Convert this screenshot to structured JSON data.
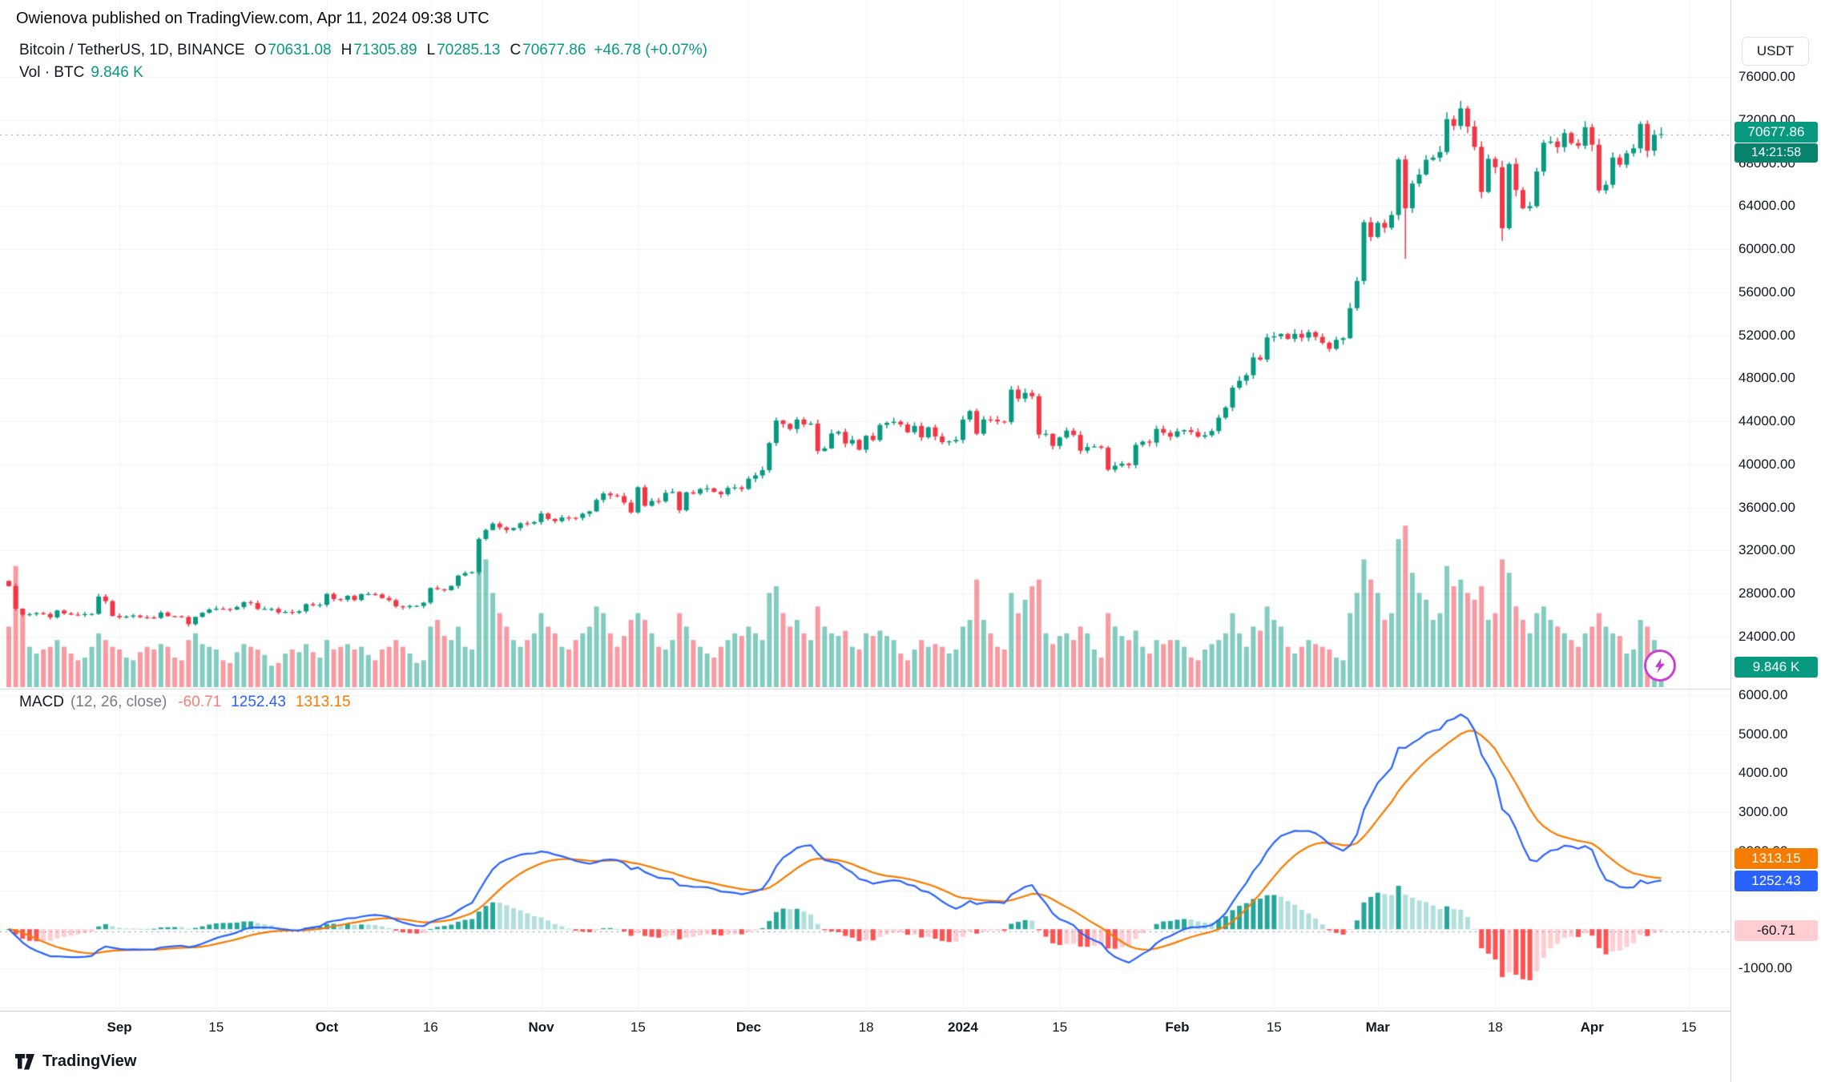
{
  "header": {
    "published": "Owienova published on TradingView.com, Apr 11, 2024 09:38 UTC"
  },
  "legend": {
    "symbol": "Bitcoin / TetherUS, 1D, BINANCE",
    "ohlc": [
      {
        "k": "O",
        "v": "70631.08"
      },
      {
        "k": "H",
        "v": "71305.89"
      },
      {
        "k": "L",
        "v": "70285.13"
      },
      {
        "k": "C",
        "v": "70677.86"
      }
    ],
    "change": "+46.78 (+0.07%)",
    "vol_label": "Vol · BTC",
    "vol_value": "9.846 K"
  },
  "macd_legend": {
    "title": "MACD",
    "params": "(12, 26, close)",
    "hist": "-60.71",
    "macd": "1252.43",
    "signal": "1313.15"
  },
  "axis": {
    "currency": "USDT",
    "price_ticks": [
      "76000.00",
      "72000.00",
      "68000.00",
      "64000.00",
      "60000.00",
      "56000.00",
      "52000.00",
      "48000.00",
      "44000.00",
      "40000.00",
      "36000.00",
      "32000.00",
      "28000.00",
      "24000.00"
    ],
    "macd_ticks": [
      "6000.00",
      "5000.00",
      "4000.00",
      "3000.00",
      "2000.00",
      "-1000.00"
    ],
    "time_ticks": [
      {
        "label": "Sep",
        "i": 16,
        "m": true
      },
      {
        "label": "15",
        "i": 30,
        "m": false
      },
      {
        "label": "Oct",
        "i": 46,
        "m": true
      },
      {
        "label": "16",
        "i": 61,
        "m": false
      },
      {
        "label": "Nov",
        "i": 77,
        "m": true
      },
      {
        "label": "15",
        "i": 91,
        "m": false
      },
      {
        "label": "Dec",
        "i": 107,
        "m": true
      },
      {
        "label": "18",
        "i": 124,
        "m": false
      },
      {
        "label": "2024",
        "i": 138,
        "m": true
      },
      {
        "label": "15",
        "i": 152,
        "m": false
      },
      {
        "label": "Feb",
        "i": 169,
        "m": true
      },
      {
        "label": "15",
        "i": 183,
        "m": false
      },
      {
        "label": "Mar",
        "i": 198,
        "m": true
      },
      {
        "label": "18",
        "i": 215,
        "m": false
      },
      {
        "label": "Apr",
        "i": 229,
        "m": true
      },
      {
        "label": "15",
        "i": 243,
        "m": false
      }
    ]
  },
  "badges": {
    "price": "70677.86",
    "countdown": "14:21:58",
    "volume": "9.846 K",
    "signal": "1313.15",
    "macd": "1252.43",
    "hist": "-60.71"
  },
  "footer": {
    "brand": "TradingView"
  },
  "colors": {
    "up": "#089981",
    "down": "#F23645",
    "vol_up": "rgba(8,153,129,0.5)",
    "vol_down": "rgba(242,54,69,0.5)",
    "macd_line": "#2962FF",
    "signal_line": "#F57C00",
    "hist_pos": "#26A69A",
    "hist_pos_weak": "#B2DFDB",
    "hist_neg": "#FF5252",
    "hist_neg_weak": "#FFCDD2",
    "grid": "#F0F3FA",
    "separator": "#D1D4DC",
    "dotted_line": "rgba(120,123,134,0.8)"
  },
  "chart_data": {
    "type": "candlestick",
    "title": "Bitcoin / TetherUS, 1D, BINANCE",
    "interval": "1D",
    "start_date": "2023-08-16",
    "end_date": "2024-04-11",
    "price_axis": {
      "visible_min": 24000,
      "visible_max": 76000,
      "tick_step": 4000
    },
    "macd_axis": {
      "visible_min": -2000,
      "visible_max": 6000,
      "tick_step": 1000
    },
    "first_open": 29180,
    "last": {
      "open": 70631.08,
      "high": 71305.89,
      "low": 70285.13,
      "close": 70677.86,
      "change": "+46.78",
      "change_pct": "+0.07%"
    },
    "macd_params": {
      "fast": 12,
      "slow": 26,
      "signal": 9,
      "last_hist": -60.71,
      "last_macd": 1252.43,
      "last_signal": 1313.15
    },
    "last_volume_kbtc": 9.846,
    "wick_overrides": {
      "202": {
        "low": 59100
      },
      "210": {
        "high": 73780
      },
      "216": {
        "low": 60770
      }
    },
    "closes": [
      28700,
      26600,
      26050,
      26090,
      26190,
      26120,
      25800,
      26430,
      26160,
      26050,
      26010,
      26100,
      26120,
      27730,
      27300,
      25930,
      25800,
      25870,
      25970,
      25810,
      25780,
      25750,
      26240,
      25900,
      25890,
      25830,
      25160,
      25840,
      26220,
      26530,
      26600,
      26570,
      26530,
      26760,
      27210,
      27120,
      26570,
      26580,
      26580,
      26250,
      26300,
      26220,
      26360,
      27020,
      26910,
      26960,
      27970,
      27500,
      27430,
      27800,
      27410,
      27950,
      27960,
      27920,
      27590,
      27390,
      26820,
      26750,
      26860,
      26860,
      27160,
      28520,
      28410,
      28320,
      28720,
      29680,
      29910,
      29990,
      33080,
      33910,
      34500,
      34150,
      33910,
      34090,
      34530,
      34500,
      34650,
      35440,
      34940,
      34730,
      35070,
      35050,
      35030,
      35420,
      35640,
      36700,
      37300,
      37130,
      37060,
      36460,
      35540,
      37880,
      36160,
      36610,
      36570,
      37360,
      37450,
      35750,
      37410,
      37290,
      37710,
      37780,
      37450,
      37240,
      37820,
      37860,
      37720,
      38680,
      38980,
      39470,
      41990,
      44080,
      43760,
      43290,
      44170,
      43720,
      43790,
      41250,
      41490,
      42870,
      43020,
      41940,
      42280,
      41370,
      42660,
      42260,
      43670,
      43860,
      43970,
      43710,
      42990,
      43580,
      42520,
      43450,
      42600,
      42070,
      42140,
      42280,
      44170,
      44960,
      42850,
      44180,
      44160,
      43990,
      43940,
      46950,
      46110,
      46650,
      46340,
      42780,
      42840,
      41720,
      42510,
      43140,
      42740,
      41280,
      41620,
      41670,
      41550,
      39510,
      39880,
      40080,
      39940,
      41820,
      42120,
      42030,
      43300,
      42940,
      42580,
      43080,
      43190,
      43010,
      42580,
      42710,
      43100,
      44340,
      45290,
      47130,
      47770,
      48290,
      49940,
      49740,
      51800,
      51900,
      52120,
      51660,
      52130,
      51780,
      52280,
      51850,
      51300,
      50740,
      51570,
      51730,
      54520,
      57040,
      62500,
      61130,
      62440,
      61990,
      63170,
      68330,
      63800,
      66090,
      66930,
      68300,
      68500,
      69020,
      72080,
      71450,
      73070,
      71390,
      69500,
      65310,
      68390,
      67610,
      61940,
      67910,
      65490,
      63800,
      63990,
      67210,
      69880,
      69990,
      69470,
      70780,
      69850,
      69600,
      71330,
      69700,
      65450,
      65980,
      68510,
      67840,
      68900,
      69360,
      71630,
      69140,
      70630,
      70677.86
    ],
    "volumes_kbtc": [
      45,
      90,
      55,
      30,
      25,
      28,
      30,
      35,
      30,
      25,
      20,
      22,
      30,
      40,
      35,
      30,
      28,
      22,
      20,
      26,
      30,
      28,
      32,
      30,
      22,
      20,
      35,
      40,
      32,
      30,
      28,
      20,
      18,
      26,
      32,
      30,
      28,
      24,
      16,
      18,
      25,
      28,
      26,
      32,
      26,
      22,
      35,
      28,
      30,
      32,
      28,
      30,
      24,
      20,
      28,
      30,
      35,
      30,
      25,
      18,
      20,
      45,
      50,
      38,
      35,
      45,
      30,
      28,
      105,
      95,
      70,
      55,
      45,
      35,
      30,
      35,
      40,
      55,
      45,
      40,
      30,
      28,
      35,
      40,
      45,
      60,
      55,
      40,
      30,
      38,
      50,
      55,
      50,
      40,
      30,
      28,
      35,
      55,
      45,
      35,
      30,
      25,
      22,
      30,
      35,
      40,
      38,
      45,
      40,
      35,
      70,
      75,
      55,
      45,
      50,
      40,
      35,
      60,
      45,
      40,
      38,
      42,
      30,
      28,
      40,
      38,
      42,
      38,
      35,
      25,
      20,
      28,
      35,
      30,
      32,
      30,
      25,
      28,
      45,
      50,
      80,
      50,
      40,
      30,
      28,
      70,
      55,
      65,
      75,
      80,
      40,
      32,
      38,
      40,
      35,
      45,
      40,
      28,
      22,
      55,
      45,
      38,
      35,
      42,
      30,
      25,
      35,
      32,
      35,
      35,
      30,
      22,
      20,
      28,
      32,
      35,
      40,
      55,
      40,
      30,
      45,
      42,
      60,
      50,
      45,
      30,
      25,
      30,
      35,
      32,
      30,
      28,
      22,
      20,
      55,
      70,
      95,
      80,
      70,
      50,
      55,
      110,
      120,
      85,
      70,
      65,
      50,
      55,
      90,
      75,
      80,
      70,
      65,
      75,
      50,
      55,
      95,
      85,
      60,
      50,
      40,
      55,
      60,
      50,
      45,
      40,
      35,
      30,
      40,
      45,
      55,
      45,
      40,
      38,
      25,
      28,
      50,
      45,
      35,
      9.846
    ]
  }
}
